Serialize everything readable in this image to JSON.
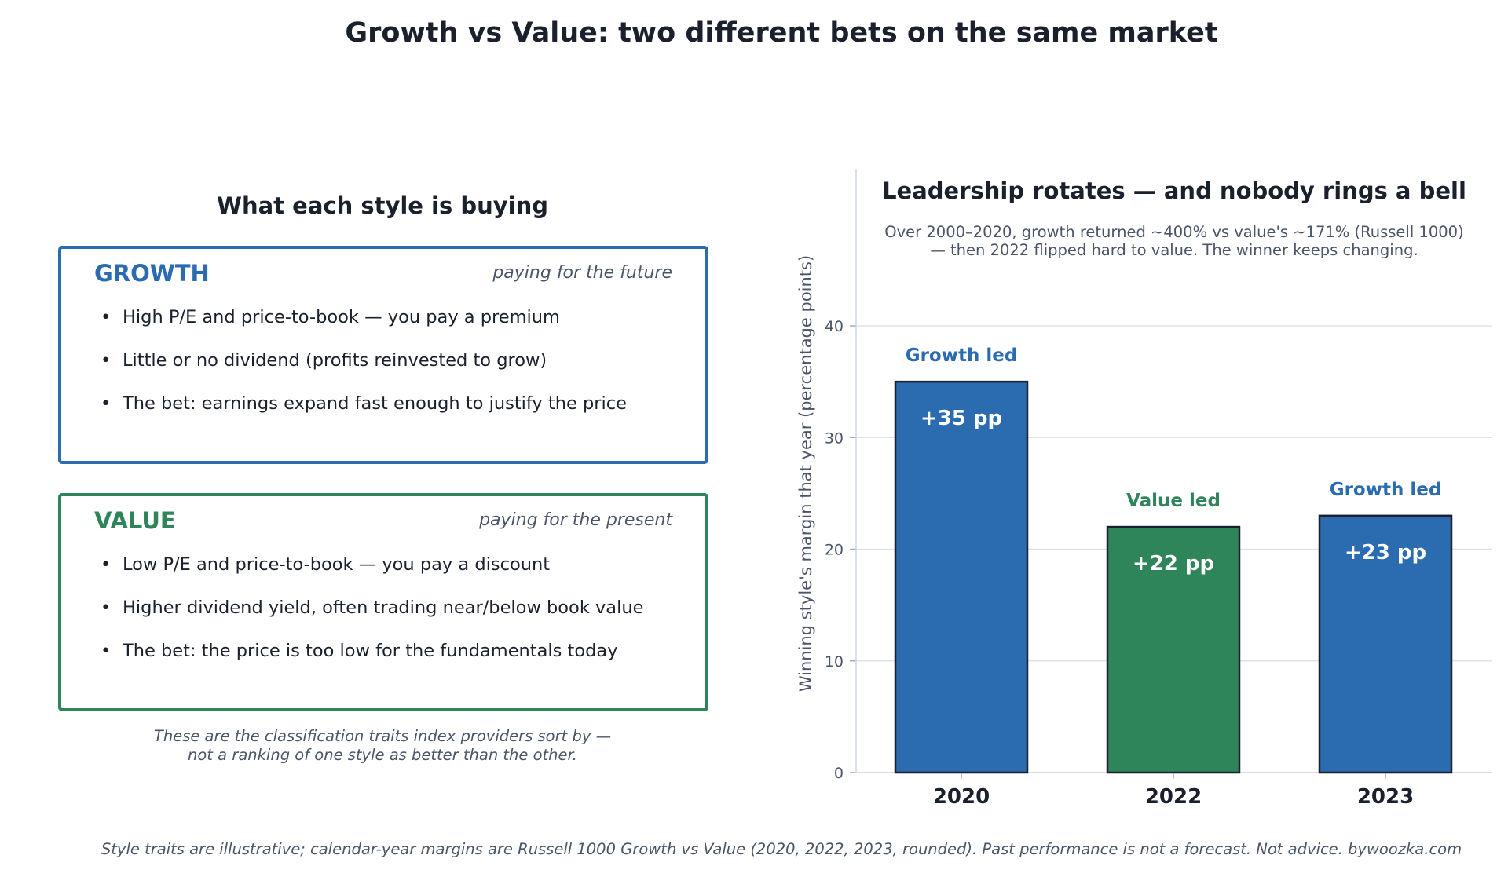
{
  "header": {
    "title": "Growth vs Value: two different bets on the same market"
  },
  "left_panel": {
    "title": "What each style is buying",
    "cards": [
      {
        "label": "GROWTH",
        "tagline": "paying for the future",
        "color": "#2b6cb0",
        "bullets": [
          "High P/E and price-to-book — you pay a premium",
          "Little or no dividend (profits reinvested to grow)",
          "The bet: earnings expand fast enough to justify the price"
        ]
      },
      {
        "label": "VALUE",
        "tagline": "paying for the present",
        "color": "#2f855a",
        "bullets": [
          "Low P/E and price-to-book — you pay a discount",
          "Higher dividend yield, often trading near/below book value",
          "The bet: the price is too low for the fundamentals today"
        ]
      }
    ],
    "note_line1": "These are the classification traits index providers sort by —",
    "note_line2": "not a ranking of one style as better than the other."
  },
  "chart_data": {
    "type": "bar",
    "title": "Leadership rotates — and nobody rings a bell",
    "subtitle_line1": "Over 2000–2020, growth returned ~400% vs value's ~171% (Russell 1000)",
    "subtitle_line2": "— then 2022 flipped hard to value. The winner keeps changing.",
    "xlabel": "",
    "ylabel": "Winning style's margin that year (percentage points)",
    "categories": [
      "2020",
      "2022",
      "2023"
    ],
    "values": [
      35,
      22,
      23
    ],
    "data_labels": [
      "+35 pp",
      "+22 pp",
      "+23 pp"
    ],
    "leader_labels": [
      "Growth led",
      "Value led",
      "Growth led"
    ],
    "bar_colors": [
      "#2b6cb0",
      "#2f855a",
      "#2b6cb0"
    ],
    "ylim": [
      0,
      45
    ],
    "yticks": [
      0,
      10,
      20,
      30,
      40
    ],
    "grid": true,
    "legend": "none"
  },
  "footer": {
    "text": "Style traits are illustrative; calendar-year margins are Russell 1000 Growth vs Value (2020, 2022, 2023, rounded). Past performance is not a forecast. Not advice.  bywoozka.com"
  }
}
